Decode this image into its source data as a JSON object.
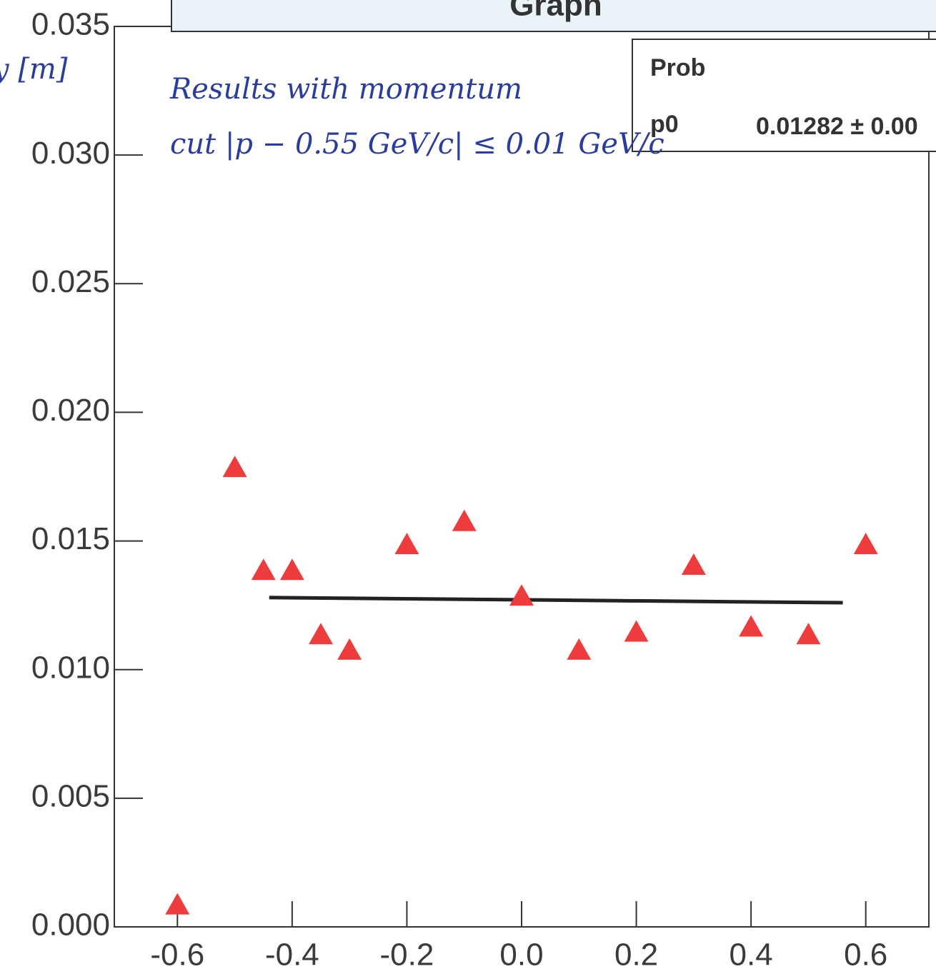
{
  "chart_data": {
    "type": "scatter",
    "title": "Graph",
    "y_label": "y [m]",
    "annotations": [
      "Results with momentum",
      "cut |p − 0.55 GeV/c| ≤ 0.01 GeV/c"
    ],
    "stats": {
      "header": "Prob",
      "param": "p0",
      "param_value": "0.01282 ± 0.00"
    },
    "x": [
      -0.6,
      -0.5,
      -0.45,
      -0.4,
      -0.35,
      -0.3,
      -0.2,
      -0.1,
      0.0,
      0.1,
      0.2,
      0.3,
      0.4,
      0.5,
      0.6
    ],
    "series": [
      {
        "color": "#ee3b3b",
        "values": [
          0.0009,
          0.0179,
          0.0139,
          0.0139,
          0.0114,
          0.0108,
          0.0149,
          0.0158,
          0.0129,
          0.0108,
          0.0115,
          0.0141,
          0.0117,
          0.0114,
          0.0149
        ]
      }
    ],
    "fit": {
      "color": "#222222",
      "x": [
        -0.44,
        0.56
      ],
      "y": [
        0.0128,
        0.0126
      ]
    },
    "xlim": [
      -0.71,
      0.71
    ],
    "ylim": [
      0,
      0.035
    ],
    "xticks": [
      -0.6,
      -0.4,
      -0.2,
      {
        "value": 0,
        "label": "0.0"
      },
      0.2,
      0.4,
      0.6
    ],
    "yticks": [
      {
        "value": 0,
        "label": "0.000"
      },
      {
        "value": 0.005,
        "label": "0.005"
      },
      {
        "value": 0.01,
        "label": "0.010"
      },
      {
        "value": 0.015,
        "label": "0.015"
      },
      {
        "value": 0.02,
        "label": "0.020"
      },
      {
        "value": 0.025,
        "label": "0.025"
      },
      {
        "value": 0.03,
        "label": "0.030"
      },
      0.035
    ]
  }
}
